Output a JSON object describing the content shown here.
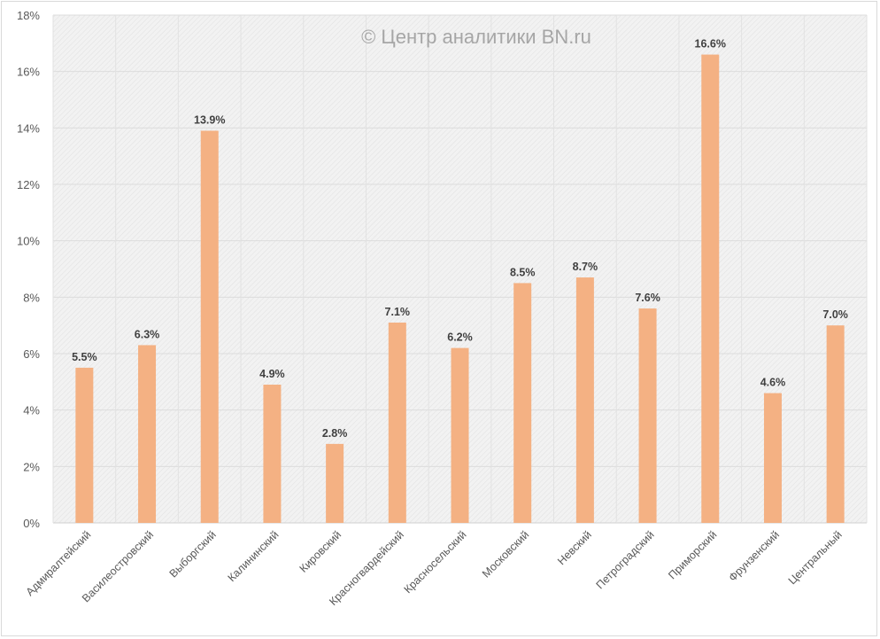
{
  "chart_data": {
    "type": "bar",
    "title": "",
    "watermark": "© Центр аналитики BN.ru",
    "xlabel": "",
    "ylabel": "",
    "ylim": [
      0,
      18
    ],
    "y_ticks": [
      "0%",
      "2%",
      "4%",
      "6%",
      "8%",
      "10%",
      "12%",
      "14%",
      "16%",
      "18%"
    ],
    "y_tick_values": [
      0,
      2,
      4,
      6,
      8,
      10,
      12,
      14,
      16,
      18
    ],
    "grid": true,
    "legend": "none",
    "bar_color": "#f4b183",
    "categories": [
      "Адмиралтейский",
      "Василеостровский",
      "Выборгский",
      "Калининский",
      "Кировский",
      "Красногвардейский",
      "Красносельский",
      "Московский",
      "Невский",
      "Петроградский",
      "Приморский",
      "Фрунзенский",
      "Центральный"
    ],
    "values": [
      5.5,
      6.3,
      13.9,
      4.9,
      2.8,
      7.1,
      6.2,
      8.5,
      8.7,
      7.6,
      16.6,
      4.6,
      7.0
    ],
    "data_labels": [
      "5.5%",
      "6.3%",
      "13.9%",
      "4.9%",
      "2.8%",
      "7.1%",
      "6.2%",
      "8.5%",
      "8.7%",
      "7.6%",
      "16.6%",
      "4.6%",
      "7.0%"
    ]
  }
}
